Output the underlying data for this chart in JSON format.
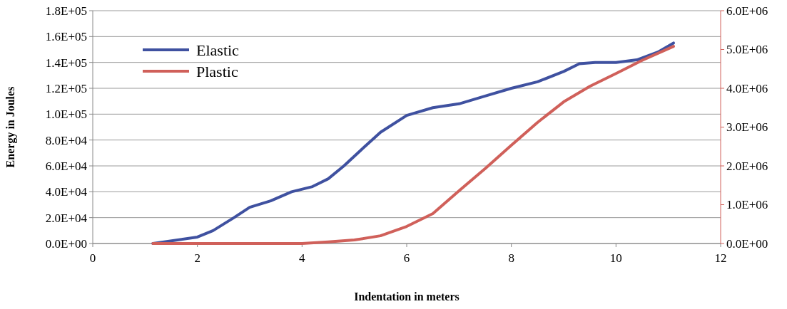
{
  "chart_data": {
    "type": "line",
    "xlabel": "Indentation in meters",
    "ylabel": "Energy in Joules",
    "xlim": [
      0,
      12
    ],
    "xticks": [
      0,
      2,
      4,
      6,
      8,
      10,
      12
    ],
    "ylim": [
      0,
      180000
    ],
    "yticks": [
      {
        "value": 0,
        "label": "0.0E+00"
      },
      {
        "value": 20000,
        "label": "2.0E+04"
      },
      {
        "value": 40000,
        "label": "4.0E+04"
      },
      {
        "value": 60000,
        "label": "6.0E+04"
      },
      {
        "value": 80000,
        "label": "8.0E+04"
      },
      {
        "value": 100000,
        "label": "1.0E+05"
      },
      {
        "value": 120000,
        "label": "1.2E+05"
      },
      {
        "value": 140000,
        "label": "1.4E+05"
      },
      {
        "value": 160000,
        "label": "1.6E+05"
      },
      {
        "value": 180000,
        "label": "1.8E+05"
      }
    ],
    "y2lim": [
      0,
      6000000
    ],
    "y2ticks": [
      {
        "value": 0,
        "label": "0.0E+00"
      },
      {
        "value": 1000000,
        "label": "1.0E+06"
      },
      {
        "value": 2000000,
        "label": "2.0E+06"
      },
      {
        "value": 3000000,
        "label": "3.0E+06"
      },
      {
        "value": 4000000,
        "label": "4.0E+06"
      },
      {
        "value": 5000000,
        "label": "5.0E+06"
      },
      {
        "value": 6000000,
        "label": "6.0E+06"
      }
    ],
    "grid": "y",
    "legend": "top left",
    "line_style": "solid",
    "marker": "none",
    "series": [
      {
        "name": "Elastic",
        "color": "#3f51a0",
        "x": [
          1.15,
          2,
          2.3,
          2.7,
          3,
          3.4,
          3.8,
          4.2,
          4.5,
          4.8,
          5.2,
          5.5,
          6,
          6.5,
          7,
          7.5,
          8,
          8.5,
          9,
          9.3,
          9.6,
          10,
          10.4,
          10.8,
          11.1
        ],
        "values": [
          0,
          5000,
          10000,
          20000,
          28000,
          33000,
          40000,
          44000,
          50000,
          60000,
          75000,
          86000,
          99000,
          105000,
          108000,
          114000,
          120000,
          125000,
          133000,
          139000,
          140000,
          140000,
          142000,
          148000,
          155000
        ]
      },
      {
        "name": "Plastic",
        "color": "#d0605a",
        "axis": "y2",
        "x": [
          1.15,
          2,
          3,
          4,
          4.5,
          5,
          5.5,
          6,
          6.5,
          7,
          7.5,
          8,
          8.5,
          9,
          9.5,
          10,
          10.5,
          11.1
        ],
        "values": [
          0,
          0,
          0,
          0,
          40000,
          90000,
          200000,
          440000,
          770000,
          1360000,
          1930000,
          2530000,
          3120000,
          3650000,
          4050000,
          4380000,
          4720000,
          5080000
        ]
      }
    ]
  }
}
